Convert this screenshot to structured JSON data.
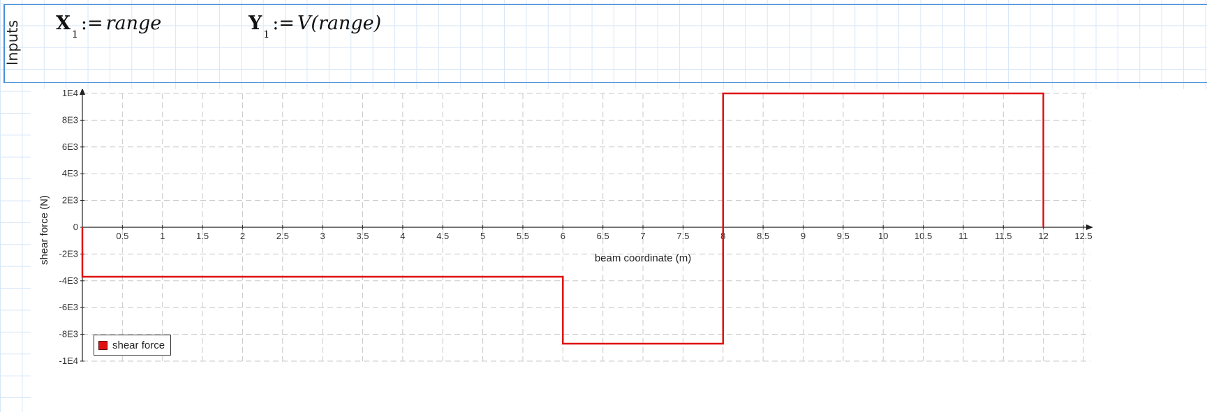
{
  "region": {
    "label": "Inputs"
  },
  "equations": [
    {
      "var": "X",
      "sub": "1",
      "op": ":=",
      "expr": "range"
    },
    {
      "var": "Y",
      "sub": "1",
      "op": ":=",
      "expr": "V(range)"
    }
  ],
  "chart_data": {
    "type": "line",
    "xlabel": "beam coordinate (m)",
    "ylabel": "shear force (N)",
    "xlim": [
      0,
      12.5
    ],
    "ylim": [
      -10000,
      10000
    ],
    "x_ticks": [
      "0.5",
      "1",
      "1.5",
      "2",
      "2.5",
      "3",
      "3.5",
      "4",
      "4.5",
      "5",
      "5.5",
      "6",
      "6.5",
      "7",
      "7.5",
      "8",
      "8.5",
      "9",
      "9.5",
      "10",
      "10.5",
      "11",
      "11.5",
      "12",
      "12.5"
    ],
    "y_ticks": [
      "1E4",
      "8E3",
      "6E3",
      "4E3",
      "2E3",
      "0",
      "-2E3",
      "-4E3",
      "-6E3",
      "-8E3",
      "-1E4"
    ],
    "grid": true,
    "legend_position": "bottom-left",
    "series": [
      {
        "name": "shear force",
        "color": "#e01010",
        "x": [
          0,
          0,
          6,
          6,
          8,
          8,
          12,
          12
        ],
        "y": [
          0,
          -3700,
          -3700,
          -8700,
          -8700,
          10000,
          10000,
          0
        ]
      }
    ]
  }
}
